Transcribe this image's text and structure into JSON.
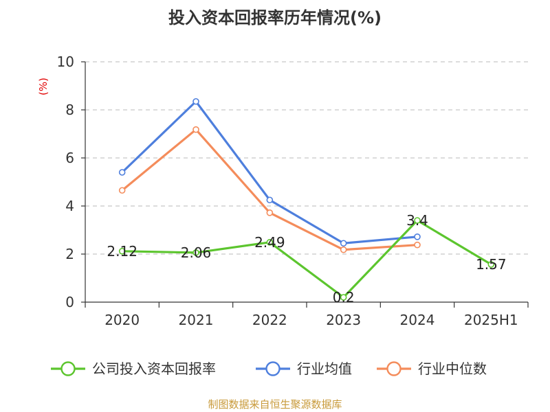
{
  "chart_data": {
    "type": "line",
    "title": "投入资本回报率历年情况(%)",
    "unit_label": "(%)",
    "categories": [
      "2020",
      "2021",
      "2022",
      "2023",
      "2024",
      "2025H1"
    ],
    "ylim": [
      0,
      10
    ],
    "yticks": [
      0,
      2,
      4,
      6,
      8,
      10
    ],
    "grid": true,
    "legend_position": "bottom",
    "series": [
      {
        "name": "公司投入资本回报率",
        "color": "#5cc52e",
        "values": [
          2.12,
          2.06,
          2.49,
          0.2,
          3.4,
          1.57
        ],
        "labels": [
          "2.12",
          "2.06",
          "2.49",
          "0.2",
          "3.4",
          "1.57"
        ],
        "show_labels": true
      },
      {
        "name": "行业均值",
        "color": "#4e7fdd",
        "values": [
          5.4,
          8.35,
          4.25,
          2.45,
          2.72,
          null
        ],
        "show_labels": false
      },
      {
        "name": "行业中位数",
        "color": "#f48c5b",
        "values": [
          4.65,
          7.18,
          3.72,
          2.18,
          2.38,
          null
        ],
        "show_labels": false
      }
    ]
  },
  "footer": {
    "source": "制图数据来自恒生聚源数据库"
  }
}
